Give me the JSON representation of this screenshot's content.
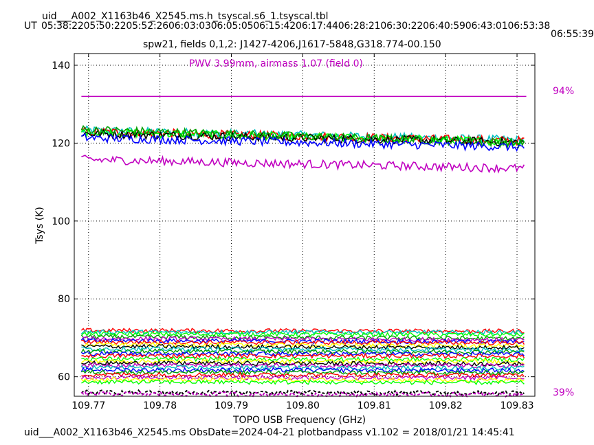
{
  "header": {
    "title": "uid___A002_X1163b46_X2545.ms.h_tsyscal.s6_1.tsyscal.tbl",
    "ut_prefix": "UT",
    "ut_times": [
      "05:38:22",
      "05:50:22",
      "05:52:26",
      "06:03:03",
      "06:05:05",
      "06:15:42",
      "06:17:44",
      "06:28:21",
      "06:30:22",
      "06:40:59",
      "06:43:01",
      "06:53:38"
    ],
    "ut_times_line1": "05:38:2205:50:2205:52:2606:03:0306:05:0506:15:4206:17:4406:28:2106:30:2206:40:5906:43:0106:53:38",
    "ut_time_line2": "06:55:39"
  },
  "footer": {
    "caption": "uid___A002_X1163b46_X2545.ms  ObsDate=2024-04-21   plotbandpass v1.102 = 2018/01/21 14:45:41"
  },
  "chart_data": {
    "type": "line",
    "title": "spw21,  fields 0,1,2: J1427-4206,J1617-5848,G318.774-00.150",
    "annotation": "PWV 3.99mm, airmass 1.07 (field 0)",
    "xlabel": "TOPO USB Frequency (GHz)",
    "ylabel": "Tsys (K)",
    "xlim": [
      109.768,
      109.8325
    ],
    "ylim": [
      55,
      143
    ],
    "xticks": [
      109.77,
      109.78,
      109.79,
      109.8,
      109.81,
      109.82,
      109.83
    ],
    "xtick_labels": [
      "109.77",
      "109.78",
      "109.79",
      "109.80",
      "109.81",
      "109.82",
      "109.83"
    ],
    "yticks": [
      60,
      80,
      100,
      120,
      140
    ],
    "ytick_labels": [
      "60",
      "80",
      "100",
      "120",
      "140"
    ],
    "grid": true,
    "right_labels": {
      "top": "94%",
      "bottom": "39%"
    },
    "transmission_level": 132,
    "colors": {
      "annotation": "#c000c0",
      "series_palette": [
        "#ff0000",
        "#0000ff",
        "#00a000",
        "#00c0c0",
        "#000000",
        "#ffff00",
        "#c000c0",
        "#00ff00"
      ]
    },
    "x_range": [
      109.769,
      109.831
    ],
    "series": [
      {
        "color": "#00c0c0",
        "start": 123.3,
        "end": 120.8
      },
      {
        "color": "#ff0000",
        "start": 123.0,
        "end": 120.6
      },
      {
        "color": "#00ff00",
        "start": 122.9,
        "end": 120.3
      },
      {
        "color": "#000000",
        "start": 122.5,
        "end": 120.2
      },
      {
        "color": "#00a000",
        "start": 123.5,
        "end": 120.0
      },
      {
        "color": "#0000ff",
        "start": 121.4,
        "end": 119.0
      },
      {
        "color": "#c000c0",
        "start": 115.8,
        "end": 113.5
      },
      {
        "color": "#ff0000",
        "start": 71.9,
        "end": 71.7
      },
      {
        "color": "#00c0c0",
        "start": 71.5,
        "end": 71.4
      },
      {
        "color": "#00ff00",
        "start": 71.0,
        "end": 70.8
      },
      {
        "color": "#00a000",
        "start": 70.3,
        "end": 69.8
      },
      {
        "color": "#c000c0",
        "start": 69.8,
        "end": 69.5
      },
      {
        "color": "#0000ff",
        "start": 69.3,
        "end": 69.0
      },
      {
        "color": "#ff0000",
        "start": 68.9,
        "end": 68.7
      },
      {
        "color": "#ffff00",
        "start": 68.3,
        "end": 67.9
      },
      {
        "color": "#000000",
        "start": 67.8,
        "end": 67.5
      },
      {
        "color": "#00c0c0",
        "start": 67.2,
        "end": 66.9
      },
      {
        "color": "#00a000",
        "start": 66.6,
        "end": 66.4
      },
      {
        "color": "#0000ff",
        "start": 66.0,
        "end": 65.8
      },
      {
        "color": "#ff0000",
        "start": 65.4,
        "end": 65.3
      },
      {
        "color": "#00ff00",
        "start": 64.6,
        "end": 64.4
      },
      {
        "color": "#ffff00",
        "start": 64.0,
        "end": 63.9
      },
      {
        "color": "#000000",
        "start": 63.5,
        "end": 63.3
      },
      {
        "color": "#c000c0",
        "start": 63.0,
        "end": 62.8
      },
      {
        "color": "#00c0c0",
        "start": 62.4,
        "end": 62.2
      },
      {
        "color": "#0000ff",
        "start": 61.8,
        "end": 61.6
      },
      {
        "color": "#00a000",
        "start": 61.2,
        "end": 61.0
      },
      {
        "color": "#ff0000",
        "start": 60.6,
        "end": 60.4
      },
      {
        "color": "#c000c0",
        "start": 59.9,
        "end": 59.7
      },
      {
        "color": "#ffff00",
        "start": 59.3,
        "end": 59.1
      },
      {
        "color": "#00ff00",
        "start": 58.7,
        "end": 58.5
      },
      {
        "color": "#000000",
        "start": 56.0,
        "end": 55.8,
        "dashed": true
      },
      {
        "color": "#c000c0",
        "start": 55.6,
        "end": 55.4,
        "dashed": true
      }
    ]
  }
}
